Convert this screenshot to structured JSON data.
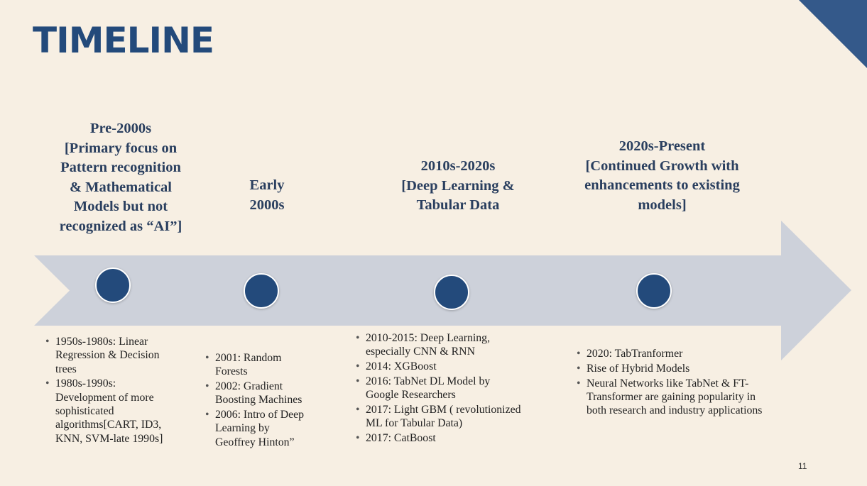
{
  "title": "TIMELINE",
  "page_number": "11",
  "colors": {
    "accent": "#234a7b",
    "arrow": "#cdd1da",
    "background": "#f7efe3"
  },
  "periods": [
    {
      "heading": [
        "Pre-2000s",
        "[Primary focus on",
        "Pattern recognition",
        "& Mathematical",
        "Models but not",
        "recognized as “AI”]"
      ],
      "bullets": [
        [
          "1950s-1980s: Linear",
          "Regression & Decision",
          "trees"
        ],
        [
          "1980s-1990s:",
          "Development of more",
          "sophisticated",
          "algorithms[CART, ID3,",
          "KNN, SVM-late 1990s]"
        ]
      ]
    },
    {
      "heading": [
        "Early",
        "2000s"
      ],
      "bullets": [
        [
          "2001: Random",
          "Forests"
        ],
        [
          "2002: Gradient",
          "Boosting Machines"
        ],
        [
          "2006: Intro of Deep",
          "Learning by",
          "Geoffrey Hinton”"
        ]
      ]
    },
    {
      "heading": [
        "2010s-2020s",
        "[Deep Learning &",
        "Tabular Data"
      ],
      "bullets": [
        [
          "2010-2015: Deep Learning,",
          "especially CNN & RNN"
        ],
        [
          "2014: XGBoost"
        ],
        [
          "2016: TabNet DL Model by",
          "Google Researchers"
        ],
        [
          "2017: Light GBM ( revolutionized",
          "ML for Tabular Data)"
        ],
        [
          "2017: CatBoost"
        ]
      ]
    },
    {
      "heading": [
        "2020s-Present",
        "[Continued Growth with",
        "enhancements to existing",
        "models]"
      ],
      "bullets": [
        [
          "2020: TabTranformer"
        ],
        [
          "Rise of Hybrid Models"
        ],
        [
          "Neural Networks like TabNet & FT-",
          "Transformer are gaining popularity in",
          "both research and industry applications"
        ]
      ]
    }
  ]
}
